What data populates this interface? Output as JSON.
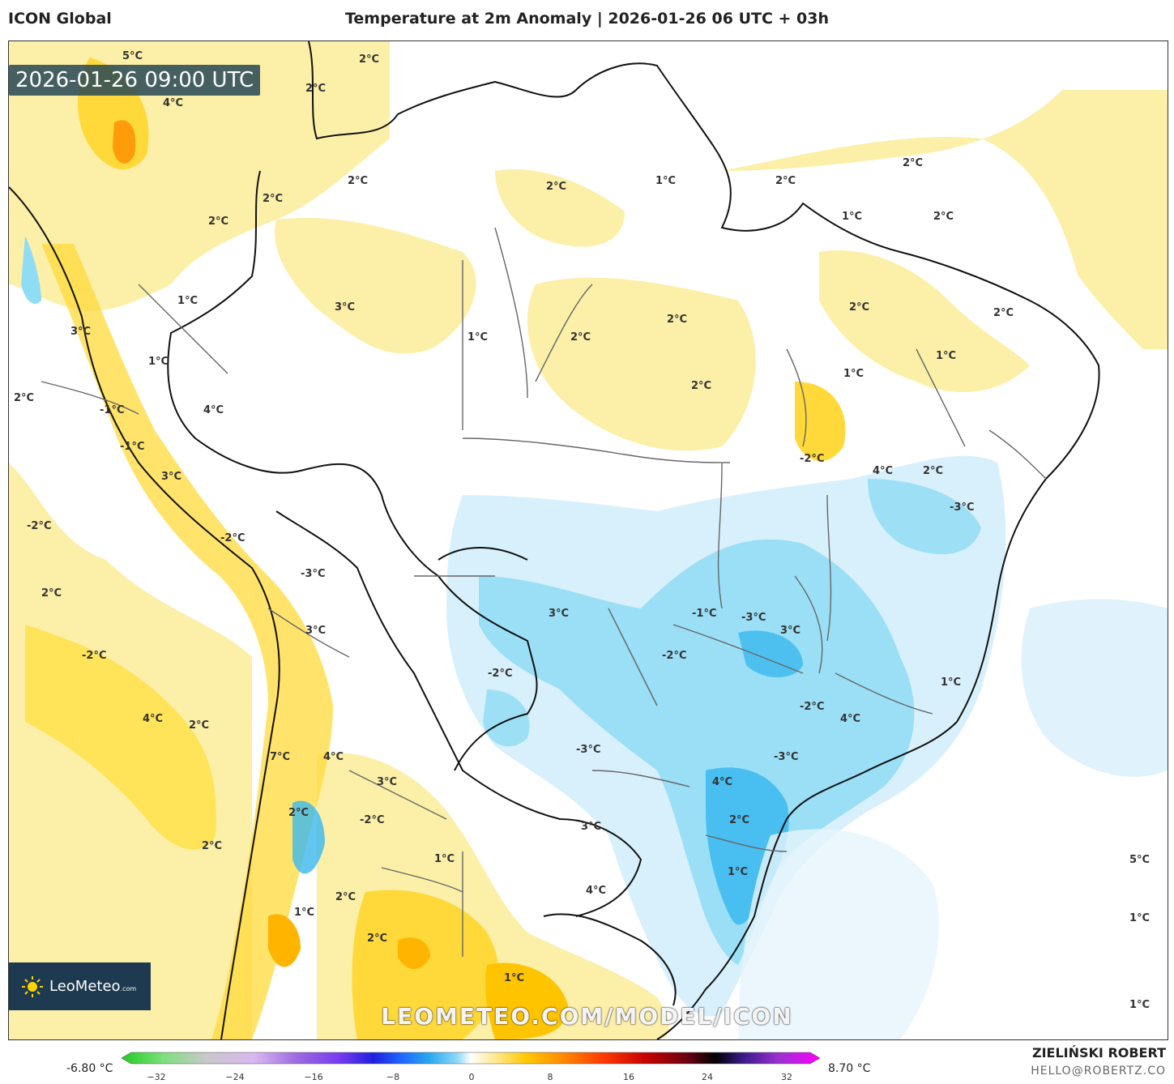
{
  "header": {
    "model": "ICON Global",
    "title": "Temperature at 2m Anomaly | 2026-01-26 06 UTC + 03h"
  },
  "map": {
    "valid_time": "2026-01-26 09:00 UTC",
    "region": "South America / Brazil",
    "contour_labels": [
      "5°C",
      "2°C",
      "2°C",
      "4°C",
      "2°C",
      "2°C",
      "1°C",
      "2°C",
      "2°C",
      "2°C",
      "1°C",
      "2°C",
      "2°C",
      "1°C",
      "3°C",
      "1°C",
      "2°C",
      "2°C",
      "2°C",
      "2°C",
      "3°C",
      "1°C",
      "1°C",
      "2°C",
      "2°C",
      "1°C",
      "4°C",
      "-1°C",
      "-1°C",
      "-2°C",
      "3°C",
      "4°C",
      "2°C",
      "-3°C",
      "-2°C",
      "-2°C",
      "-3°C",
      "2°C",
      "3°C",
      "-1°C",
      "-3°C",
      "3°C",
      "3°C",
      "-2°C",
      "-2°C",
      "-2°C",
      "1°C",
      "4°C",
      "2°C",
      "-2°C",
      "4°C",
      "-3°C",
      "7°C",
      "4°C",
      "-3°C",
      "3°C",
      "4°C",
      "2°C",
      "-2°C",
      "2°C",
      "3°C",
      "2°C",
      "1°C",
      "1°C",
      "5°C",
      "4°C",
      "2°C",
      "1°C",
      "1°C",
      "2°C",
      "1°C",
      "1°C"
    ],
    "colors": {
      "warm_light": "#fcefa8",
      "warm_mid": "#ffd93a",
      "warm_strong": "#ffb400",
      "cold_light": "#d8f0fb",
      "cold_mid": "#8fdcf5",
      "cold_strong": "#3bb8ee",
      "border": "#111111"
    }
  },
  "branding": {
    "logo": "LeoMeteo",
    "logo_suffix": ".com",
    "watermark": "LEOMETEO.COM/MODEL/ICON"
  },
  "colorbar": {
    "min_label": "-6.80 °C",
    "max_label": "8.70 °C",
    "ticks": [
      "−32",
      "−24",
      "−16",
      "−8",
      "0",
      "8",
      "16",
      "24",
      "32"
    ],
    "stops": [
      "#22cc22",
      "#7ce07c",
      "#c8c8c8",
      "#d8b8f0",
      "#9f6be0",
      "#7a3cf0",
      "#2020e0",
      "#1e64ff",
      "#28a8f0",
      "#8ad8f8",
      "#ffffff",
      "#ffe680",
      "#ffc800",
      "#ff8c00",
      "#ff3a00",
      "#c80000",
      "#6a0010",
      "#000000",
      "#3a1a8a",
      "#9a30d0",
      "#ff00ff"
    ]
  },
  "author": {
    "name": "ZIELIŃSKI ROBERT",
    "email": "HELLO@ROBERTZ.CO"
  }
}
